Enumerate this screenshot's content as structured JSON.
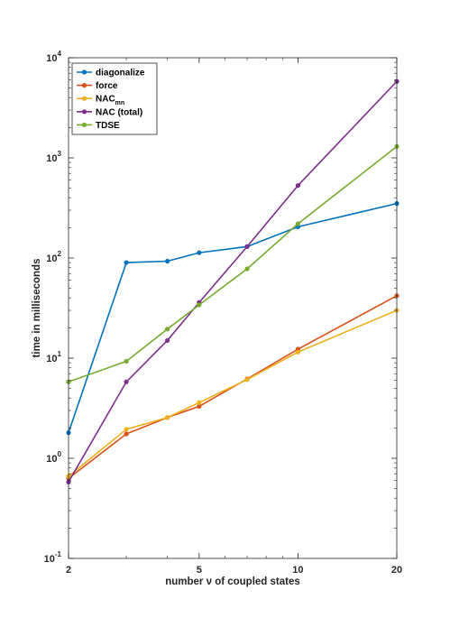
{
  "chart_data": {
    "type": "line",
    "xlabel": "number ν of coupled states",
    "ylabel": "time in milliseconds",
    "xscale": "log",
    "yscale": "log",
    "xlim": [
      2,
      20
    ],
    "ylim": [
      0.1,
      10000
    ],
    "x_ticks": [
      2,
      5,
      10,
      20
    ],
    "x_tick_labels": [
      "2",
      "5",
      "10",
      "20"
    ],
    "y_ticks": [
      0.1,
      1,
      10,
      100,
      1000,
      10000
    ],
    "y_tick_labels": [
      {
        "base": "10",
        "exp": "-1"
      },
      {
        "base": "10",
        "exp": "0"
      },
      {
        "base": "10",
        "exp": "1"
      },
      {
        "base": "10",
        "exp": "2"
      },
      {
        "base": "10",
        "exp": "3"
      },
      {
        "base": "10",
        "exp": "4"
      }
    ],
    "grid": false,
    "legend_position": "top-left",
    "x": [
      2,
      3,
      4,
      5,
      7,
      10,
      20
    ],
    "series": [
      {
        "name": "diagonalize",
        "color": "#0072BD",
        "values": [
          1.8,
          90,
          93,
          113,
          130,
          205,
          350
        ]
      },
      {
        "name": "force",
        "color": "#D95319",
        "values": [
          0.63,
          1.75,
          2.55,
          3.3,
          6.2,
          12.3,
          42
        ]
      },
      {
        "name": "NAC",
        "name_sub": "mn",
        "color": "#EDB120",
        "values": [
          0.66,
          1.95,
          2.55,
          3.6,
          6.1,
          11.5,
          30
        ]
      },
      {
        "name": "NAC (total)",
        "color": "#7E2F8E",
        "values": [
          0.58,
          5.8,
          15,
          36,
          130,
          530,
          5800
        ]
      },
      {
        "name": "TDSE",
        "color": "#77AC30",
        "values": [
          5.8,
          9.3,
          19.5,
          34,
          78,
          220,
          1300
        ]
      }
    ]
  }
}
